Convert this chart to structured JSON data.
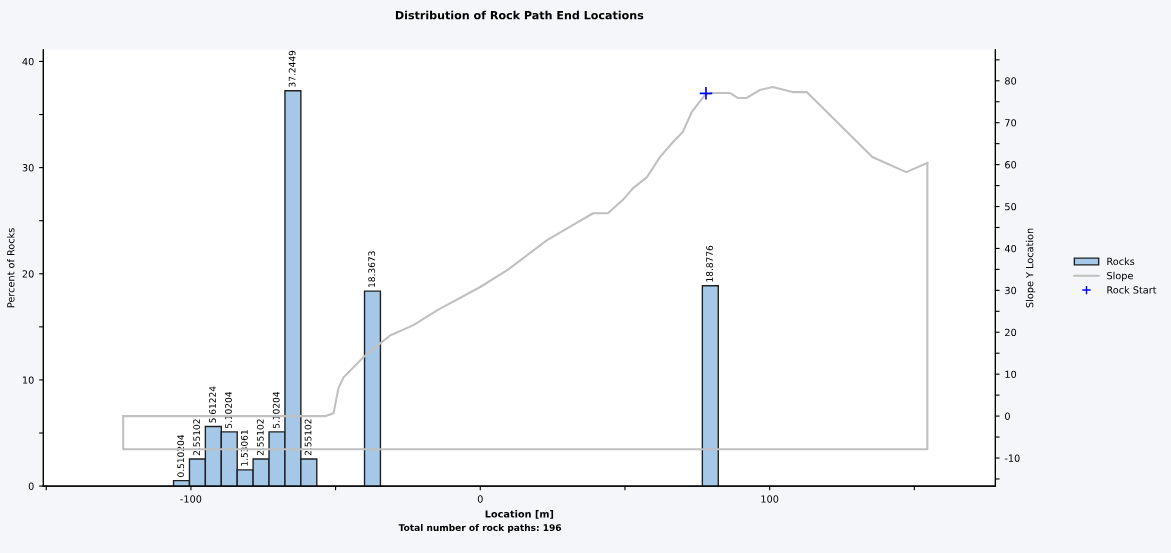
{
  "chart_data": {
    "type": "bar",
    "title": "Distribution of Rock Path End Locations",
    "xlabel": "Location [m]",
    "ylabel": "Percent of Rocks",
    "y2label": "Slope Y Location",
    "series": [
      {
        "name": "Rocks",
        "color": "#a6c8e8",
        "x": [
          -103.25,
          -97.75,
          -92.25,
          -86.75,
          -81.25,
          -75.75,
          -70.25,
          -64.75,
          -59.25,
          -37.25,
          79.5
        ],
        "values": [
          0.510204,
          2.55102,
          5.61224,
          5.10204,
          1.53061,
          2.55102,
          5.10204,
          37.2449,
          2.55102,
          18.3673,
          18.8776
        ],
        "value_labels": [
          "0.510204",
          "2.55102",
          "5.61224",
          "5.10204",
          "1.53061",
          "2.55102",
          "5.10204",
          "37.2449",
          "2.55102",
          "18.3673",
          "18.8776"
        ]
      },
      {
        "name": "Slope",
        "type": "line",
        "axis": "y2",
        "color": "#c0c0c0",
        "x": [
          -123.4,
          -53.4,
          -50.7,
          -49.0,
          -47.2,
          -40.3,
          -34.5,
          -31.0,
          -23.1,
          -14.8,
          0,
          9.3,
          23.1,
          32.1,
          39.0,
          44.1,
          49.3,
          52.8,
          57.6,
          62.1,
          66.6,
          70.0,
          73.1,
          77.6,
          80.3,
          86.2,
          89.0,
          92.1,
          96.6,
          101.0,
          107.9,
          112.8,
          135.5,
          147.2,
          154.5
        ],
        "values": [
          0,
          0,
          0.7,
          6.7,
          9.3,
          14.1,
          17.4,
          19.3,
          21.7,
          25.3,
          30.8,
          34.8,
          42.0,
          45.6,
          48.4,
          48.4,
          51.6,
          54.4,
          57.0,
          61.8,
          65.4,
          67.8,
          72.6,
          76.6,
          77.1,
          77.1,
          75.9,
          75.9,
          77.8,
          78.5,
          77.3,
          77.3,
          61.8,
          58.2,
          60.4
        ]
      },
      {
        "type": "line",
        "axis": "y2",
        "color": "#c0c0c0",
        "x": [
          -123.4,
          -123.4,
          154.5,
          154.5
        ],
        "values": [
          0,
          -7.9,
          -7.9,
          60.4
        ]
      },
      {
        "name": "Rock Start",
        "type": "scatter",
        "axis": "y2",
        "color": "#0000ff",
        "marker": "cross",
        "x": [
          78
        ],
        "values": [
          77
        ]
      }
    ],
    "xlim": [
      -151,
      178
    ],
    "xticks": [
      {
        "value": -150,
        "label": null
      },
      -100,
      {
        "value": -50,
        "label": null
      },
      0,
      {
        "value": 50,
        "label": null
      },
      100,
      {
        "value": 150,
        "label": null
      }
    ],
    "ylim": [
      0,
      41.1
    ],
    "yticks": [
      0,
      {
        "value": 5,
        "label": null
      },
      10,
      {
        "value": 15,
        "label": null
      },
      20,
      {
        "value": 25,
        "label": null
      },
      30,
      {
        "value": 35,
        "label": null
      },
      40
    ],
    "y2lim": [
      -16.7,
      87.4
    ],
    "y2ticks": [
      {
        "value": -15,
        "label": null
      },
      -10,
      {
        "value": -5,
        "label": null
      },
      0,
      {
        "value": 5,
        "label": null
      },
      10,
      {
        "value": 15,
        "label": null
      },
      20,
      {
        "value": 25,
        "label": null
      },
      30,
      {
        "value": 35,
        "label": null
      },
      40,
      {
        "value": 45,
        "label": null
      },
      50,
      {
        "value": 55,
        "label": null
      },
      60,
      {
        "value": 65,
        "label": null
      },
      70,
      {
        "value": 75,
        "label": null
      },
      80,
      {
        "value": 85,
        "label": null
      }
    ],
    "legend": "right",
    "grid": false,
    "annotations": [
      "Total number of rock paths: 196"
    ]
  }
}
